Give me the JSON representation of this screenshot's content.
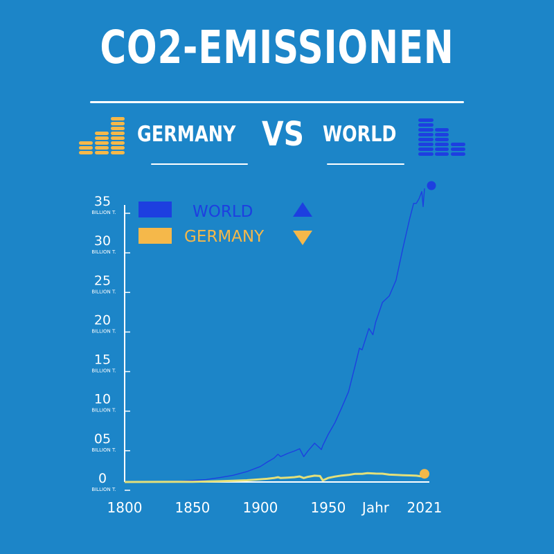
{
  "header": {
    "title": "CO2-EMISSIONEN",
    "left_label": "GERMANY",
    "vs_label": "VS",
    "right_label": "WORLD"
  },
  "colors": {
    "background": "#1c85c8",
    "world": "#1d3fe0",
    "germany": "#f5b84a",
    "germany_line": "#e4e07a",
    "text": "#ffffff"
  },
  "icons": {
    "left": "stacked-coins-icon",
    "right": "stacked-bars-icon",
    "world_trend": "triangle-up-icon",
    "germany_trend": "triangle-down-icon"
  },
  "chart_data": {
    "type": "line",
    "title": "CO2-EMISSIONEN",
    "xlabel": "Jahr",
    "ylabel": "",
    "xlim": [
      1800,
      2021
    ],
    "ylim": [
      0,
      35
    ],
    "x_ticks": [
      {
        "value": 1800,
        "label": "1800"
      },
      {
        "value": 1850,
        "label": "1850"
      },
      {
        "value": 1900,
        "label": "1900"
      },
      {
        "value": 1950,
        "label": "1950"
      },
      {
        "value": 2021,
        "label": "2021"
      }
    ],
    "x_axis_title_value": 1985,
    "y_ticks": [
      {
        "value": 0,
        "label": "0",
        "unit": "BILLION T."
      },
      {
        "value": 5,
        "label": "05",
        "unit": "BILLION T."
      },
      {
        "value": 10,
        "label": "10",
        "unit": "BILLION T."
      },
      {
        "value": 15,
        "label": "15",
        "unit": "BILLION T."
      },
      {
        "value": 20,
        "label": "20",
        "unit": "BILLION T."
      },
      {
        "value": 25,
        "label": "25",
        "unit": "BILLION T."
      },
      {
        "value": 30,
        "label": "30",
        "unit": "BILLION T."
      },
      {
        "value": 35,
        "label": "35",
        "unit": "BILLION T."
      }
    ],
    "legend": {
      "position": "top-left"
    },
    "series": [
      {
        "name": "WORLD",
        "trend": "up",
        "x": [
          1800,
          1820,
          1840,
          1860,
          1870,
          1880,
          1890,
          1900,
          1905,
          1910,
          1913,
          1915,
          1920,
          1925,
          1929,
          1932,
          1935,
          1940,
          1945,
          1946,
          1950,
          1955,
          1960,
          1965,
          1970,
          1973,
          1975,
          1980,
          1983,
          1985,
          1990,
          1995,
          2000,
          2005,
          2010,
          2013,
          2015,
          2017,
          2019,
          2020,
          2021
        ],
        "y": [
          0.03,
          0.05,
          0.1,
          0.3,
          0.55,
          0.85,
          1.3,
          1.95,
          2.5,
          3.0,
          3.5,
          3.2,
          3.6,
          3.9,
          4.2,
          3.2,
          3.9,
          4.9,
          4.1,
          4.6,
          6.0,
          7.5,
          9.4,
          11.4,
          14.8,
          16.9,
          16.7,
          19.4,
          18.6,
          20.2,
          22.7,
          23.5,
          25.5,
          29.5,
          33.2,
          35.2,
          35.2,
          35.8,
          36.7,
          34.8,
          37.1
        ]
      },
      {
        "name": "GERMANY",
        "trend": "down",
        "x": [
          1800,
          1850,
          1870,
          1880,
          1890,
          1900,
          1905,
          1910,
          1913,
          1915,
          1920,
          1925,
          1929,
          1932,
          1935,
          1940,
          1944,
          1946,
          1950,
          1955,
          1960,
          1965,
          1970,
          1975,
          1979,
          1985,
          1990,
          1995,
          2000,
          2005,
          2010,
          2015,
          2019,
          2020,
          2021
        ],
        "y": [
          0.0,
          0.03,
          0.1,
          0.15,
          0.22,
          0.34,
          0.4,
          0.5,
          0.6,
          0.5,
          0.55,
          0.6,
          0.7,
          0.5,
          0.65,
          0.8,
          0.75,
          0.2,
          0.51,
          0.68,
          0.81,
          0.89,
          1.03,
          1.03,
          1.12,
          1.06,
          1.05,
          0.93,
          0.9,
          0.86,
          0.83,
          0.8,
          0.7,
          0.65,
          0.68
        ]
      }
    ]
  }
}
